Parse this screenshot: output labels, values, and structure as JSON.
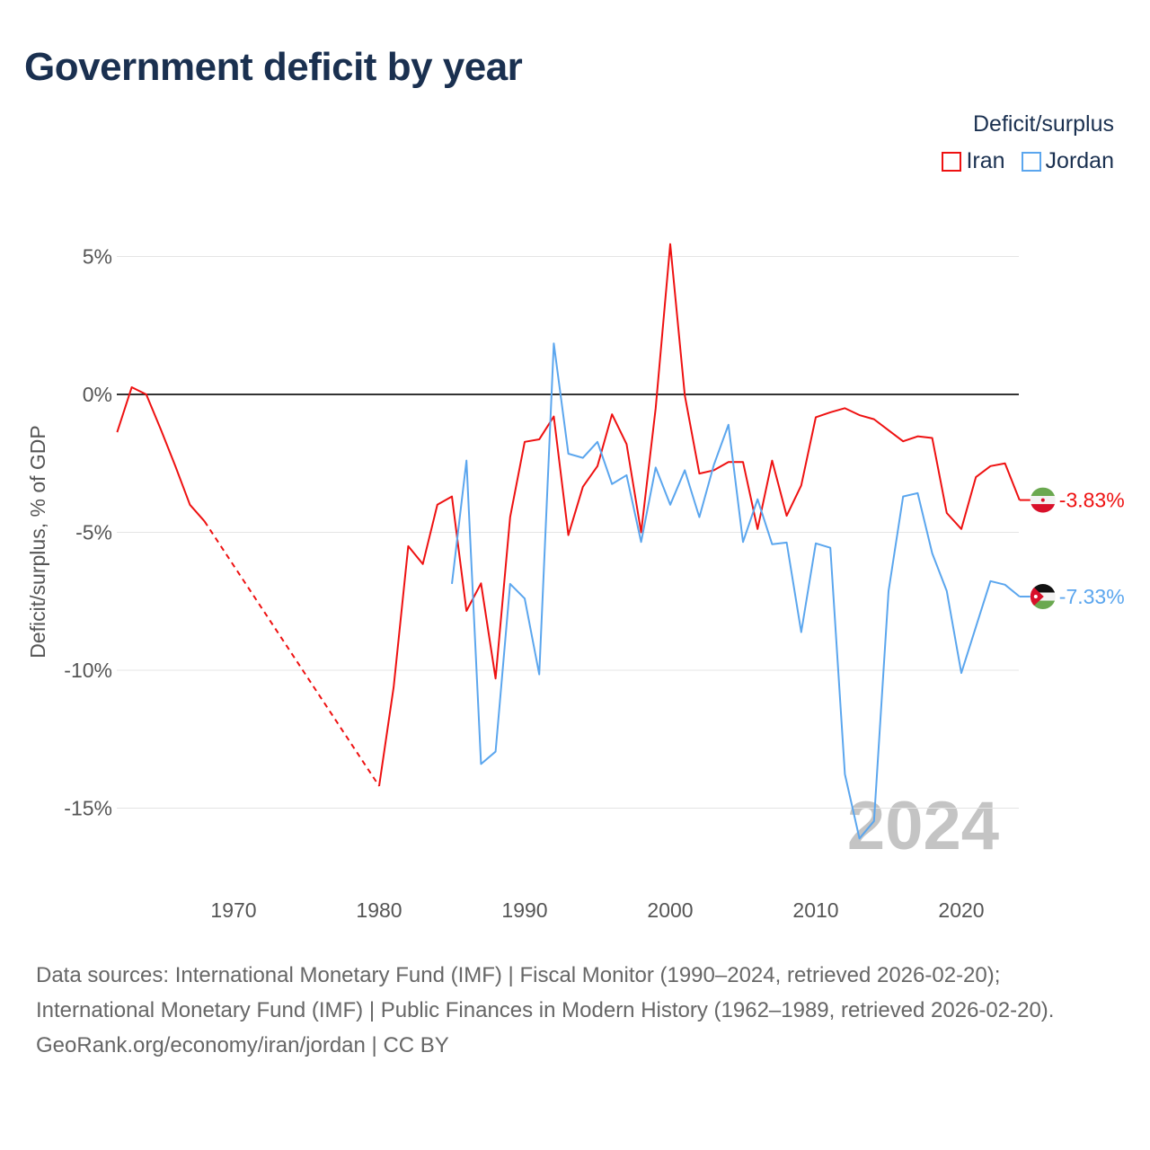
{
  "title": "Government deficit by year",
  "legend": {
    "title": "Deficit/surplus",
    "items": [
      {
        "label": "Iran",
        "color": "#ee1111"
      },
      {
        "label": "Jordan",
        "color": "#5ba6ee"
      }
    ]
  },
  "footer": {
    "sources": "Data sources: International Monetary Fund (IMF) | Fiscal Monitor (1990–2024, retrieved 2026-02-20); International Monetary Fund (IMF) | Public Finances in Modern History (1962–1989, retrieved 2026-02-20).",
    "link": "GeoRank.org/economy/iran/jordan | CC BY"
  },
  "chart_data": {
    "type": "line",
    "title": "Government deficit by year",
    "xlabel": "",
    "ylabel": "Deficit/surplus, % of GDP",
    "xlim": [
      1962,
      2024
    ],
    "ylim": [
      -17,
      6
    ],
    "xticks": [
      1970,
      1980,
      1990,
      2000,
      2010,
      2020
    ],
    "xtick_labels": [
      "1970",
      "1980",
      "1990",
      "2000",
      "2010",
      "2020"
    ],
    "yticks": [
      5,
      0,
      -5,
      -10,
      -15
    ],
    "ytick_labels": [
      "5%",
      "0%",
      "-5%",
      "-10%",
      "-15%"
    ],
    "year_watermark": "2024",
    "grid": true,
    "legend_position": "top-right",
    "series": [
      {
        "name": "Iran",
        "color": "#ee1111",
        "end_label": "-3.83%",
        "start_year": 1962,
        "values": [
          -1.37,
          0.26,
          0.0,
          -1.27,
          -2.6,
          -4.0,
          -4.6,
          null,
          null,
          null,
          null,
          null,
          null,
          null,
          null,
          null,
          null,
          null,
          -14.2,
          -10.6,
          -5.5,
          -6.15,
          -4.0,
          -3.7,
          -7.85,
          -6.85,
          -10.3,
          -4.45,
          -1.72,
          -1.63,
          -0.8,
          -5.1,
          -3.35,
          -2.6,
          -0.72,
          -1.8,
          -5.0,
          -0.5,
          5.45,
          -0.03,
          -2.87,
          -2.75,
          -2.45,
          -2.45,
          -4.88,
          -2.4,
          -4.4,
          -3.3,
          -0.83,
          -0.65,
          -0.5,
          -0.75,
          -0.9,
          -1.3,
          -1.7,
          -1.52,
          -1.58,
          -4.3,
          -4.88,
          -3.0,
          -2.6,
          -2.5,
          -3.83
        ]
      },
      {
        "name": "Jordan",
        "color": "#5ba6ee",
        "end_label": "-7.33%",
        "start_year": 1985,
        "values": [
          -6.87,
          -2.4,
          -13.4,
          -12.95,
          -6.87,
          -7.4,
          -10.15,
          1.85,
          -2.15,
          -2.3,
          -1.72,
          -3.25,
          -2.93,
          -5.35,
          -2.65,
          -4.0,
          -2.75,
          -4.45,
          -2.55,
          -1.1,
          -5.35,
          -3.8,
          -5.43,
          -5.37,
          -8.62,
          -5.4,
          -5.56,
          -13.77,
          -16.1,
          -15.47,
          -7.13,
          -3.7,
          -3.58,
          -5.76,
          -7.13,
          -10.1,
          -8.43,
          -6.77,
          -6.9,
          -7.33
        ]
      }
    ]
  }
}
